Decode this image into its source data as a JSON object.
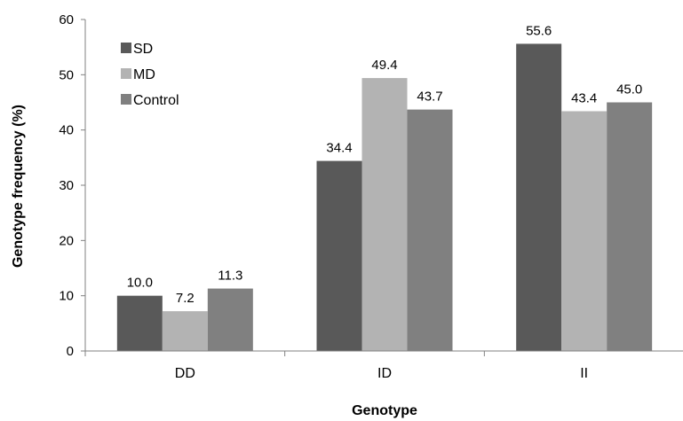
{
  "chart_data": {
    "type": "bar",
    "title": "",
    "xlabel": "Genotype",
    "ylabel": "Genotype frequency (%)",
    "ylim": [
      0,
      60
    ],
    "yticks": [
      0,
      10,
      20,
      30,
      40,
      50,
      60
    ],
    "categories": [
      "DD",
      "ID",
      "II"
    ],
    "series": [
      {
        "name": "SD",
        "color": "#595959",
        "values": [
          10.0,
          34.4,
          55.6
        ],
        "labels": [
          "10.0",
          "34.4",
          "55.6"
        ]
      },
      {
        "name": "MD",
        "color": "#b3b3b3",
        "values": [
          7.2,
          49.4,
          43.4
        ],
        "labels": [
          "7.2",
          "49.4",
          "43.4"
        ]
      },
      {
        "name": "Control",
        "color": "#808080",
        "values": [
          11.3,
          43.7,
          45.0
        ],
        "labels": [
          "11.3",
          "43.7",
          "45.0"
        ]
      }
    ],
    "legend_position": "top-left",
    "grid": false
  }
}
